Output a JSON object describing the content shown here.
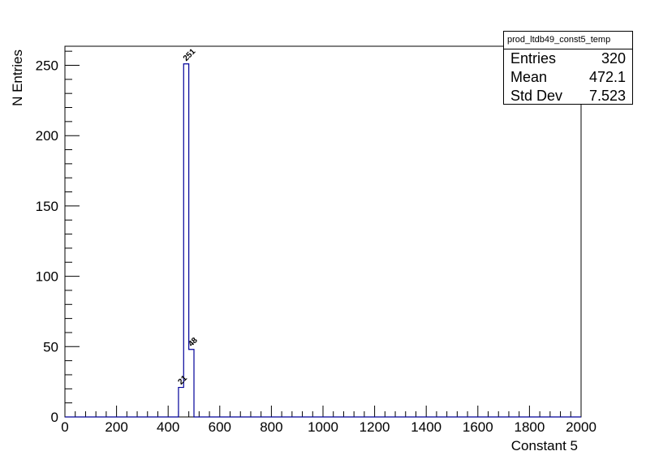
{
  "chart_data": {
    "type": "histogram",
    "title": "",
    "xlabel": "Constant 5",
    "ylabel": "N Entries",
    "xlim": [
      0,
      2000
    ],
    "ylim": [
      0,
      263.55
    ],
    "x_ticks": [
      0,
      200,
      400,
      600,
      800,
      1000,
      1200,
      1400,
      1600,
      1800,
      2000
    ],
    "y_ticks": [
      0,
      50,
      100,
      150,
      200,
      250
    ],
    "bin_width": 20,
    "bins": [
      {
        "x0": 440,
        "x1": 460,
        "value": 21,
        "label": "21"
      },
      {
        "x0": 460,
        "x1": 480,
        "value": 251,
        "label": "251"
      },
      {
        "x0": 480,
        "x1": 500,
        "value": 48,
        "label": "48"
      }
    ],
    "line_color": "#000099",
    "grid": false,
    "legend": "none"
  },
  "stats": {
    "title": "prod_ltdb49_const5_temp",
    "rows": [
      {
        "label": "Entries",
        "value": "320"
      },
      {
        "label": "Mean",
        "value": "472.1"
      },
      {
        "label": "Std Dev",
        "value": "7.523"
      }
    ]
  }
}
